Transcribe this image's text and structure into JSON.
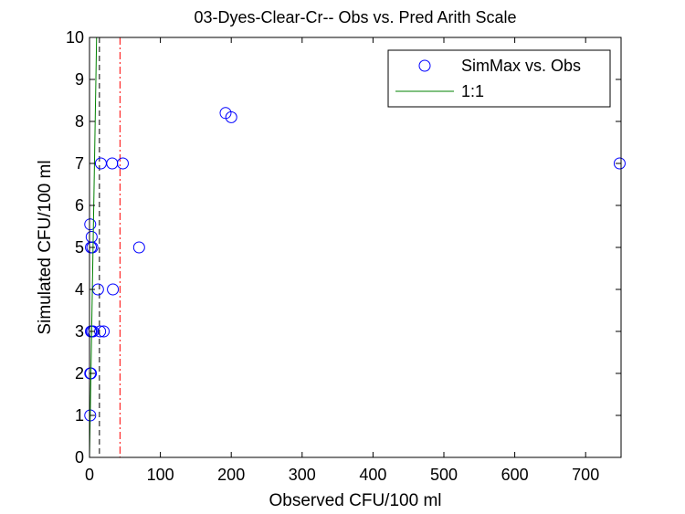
{
  "chart_data": {
    "type": "scatter",
    "title": "03-Dyes-Clear-Cr-- Obs vs. Pred Arith Scale",
    "xlabel": "Observed CFU/100 ml",
    "ylabel": "Simulated CFU/100 ml",
    "xlim": [
      0,
      750
    ],
    "ylim": [
      0,
      10
    ],
    "xticks": [
      0,
      100,
      200,
      300,
      400,
      500,
      600,
      700
    ],
    "yticks": [
      0,
      1,
      2,
      3,
      4,
      5,
      6,
      7,
      8,
      9,
      10
    ],
    "grid": false,
    "legend_position": "top-right",
    "series": [
      {
        "name": "SimMax vs. Obs",
        "kind": "scatter",
        "marker": "open-circle",
        "color": "#0000ff",
        "x": [
          1,
          1,
          2,
          3,
          5,
          2,
          4,
          12,
          16,
          32,
          47,
          192,
          200,
          748,
          70,
          33,
          20,
          15,
          3,
          1,
          2
        ],
        "y": [
          1,
          2,
          2,
          3,
          3,
          5,
          5,
          4,
          7,
          7,
          7,
          8.2,
          8.1,
          7,
          5,
          4,
          3,
          3,
          5.25,
          5.55,
          3
        ]
      },
      {
        "name": "1:1",
        "kind": "line",
        "color": "#008000",
        "x": [
          0,
          10
        ],
        "y": [
          0,
          10
        ]
      }
    ],
    "reference_lines": [
      {
        "orientation": "vertical",
        "x": 14,
        "style": "dashed",
        "color": "#000000"
      },
      {
        "orientation": "vertical",
        "x": 43,
        "style": "dash-dot",
        "color": "#ff0000"
      }
    ]
  }
}
